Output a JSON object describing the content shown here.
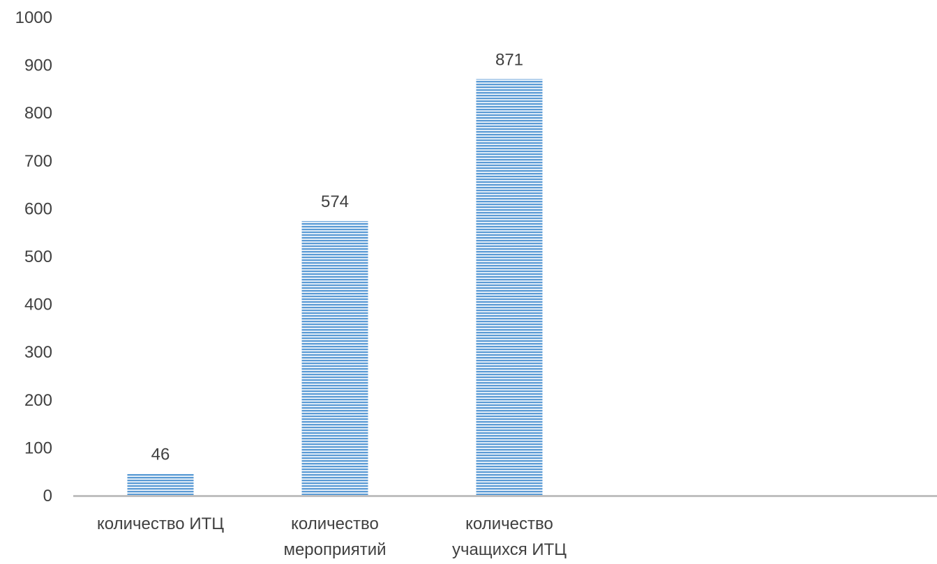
{
  "chart_data": {
    "type": "bar",
    "title": "",
    "xlabel": "",
    "ylabel": "",
    "categories": [
      [
        "количество ИТЦ"
      ],
      [
        "количество",
        "мероприятий"
      ],
      [
        "количество",
        "учащихся ИТЦ"
      ]
    ],
    "values": [
      46,
      574,
      871
    ],
    "data_labels": [
      "46",
      "574",
      "871"
    ],
    "ylim": [
      0,
      1000
    ],
    "y_ticks": [
      0,
      100,
      200,
      300,
      400,
      500,
      600,
      700,
      800,
      900,
      1000
    ],
    "grid": false,
    "legend": "none",
    "colors": {
      "bar_stripe": "#5b9bd5",
      "bar_gap": "#ffffff",
      "axis": "#bfbfbf",
      "text": "#404040"
    }
  }
}
